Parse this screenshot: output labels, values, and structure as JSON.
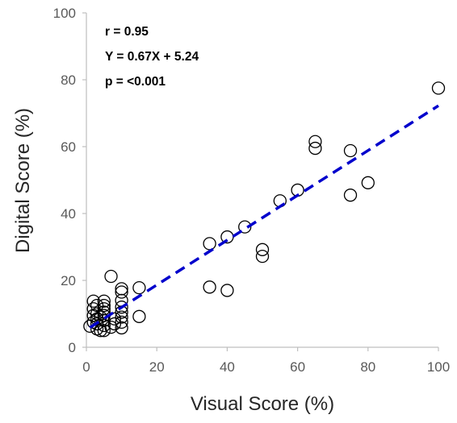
{
  "chart_data": {
    "type": "scatter",
    "title": "",
    "xlabel": "Visual Score (%)",
    "ylabel": "Digital Score (%)",
    "xlim": [
      0,
      100
    ],
    "ylim": [
      0,
      100
    ],
    "x_ticks": [
      "0",
      "20",
      "40",
      "60",
      "80",
      "100"
    ],
    "y_ticks": [
      "0",
      "20",
      "40",
      "60",
      "80",
      "100"
    ],
    "grid": false,
    "legend": "none",
    "annotations": {
      "r": "r = 0.95",
      "equation": "Y = 0.67X + 5.24",
      "p": "p = <0.001"
    },
    "regression": {
      "slope": 0.67,
      "intercept": 5.24,
      "x_range": [
        1,
        100
      ],
      "color": "#0000cc",
      "style": "dashed"
    },
    "point_color": "#000000",
    "points": [
      {
        "x": 1,
        "y": 6.3
      },
      {
        "x": 2,
        "y": 7.5
      },
      {
        "x": 2,
        "y": 9.5
      },
      {
        "x": 2,
        "y": 11.5
      },
      {
        "x": 2,
        "y": 13.8
      },
      {
        "x": 3,
        "y": 5.5
      },
      {
        "x": 3,
        "y": 7.0
      },
      {
        "x": 3,
        "y": 8.5
      },
      {
        "x": 3,
        "y": 12.5
      },
      {
        "x": 3,
        "y": 10.0
      },
      {
        "x": 4,
        "y": 5.0
      },
      {
        "x": 4,
        "y": 9.0
      },
      {
        "x": 5,
        "y": 5.0
      },
      {
        "x": 5,
        "y": 6.5
      },
      {
        "x": 5,
        "y": 8.0
      },
      {
        "x": 5,
        "y": 9.5
      },
      {
        "x": 5,
        "y": 10.5
      },
      {
        "x": 5,
        "y": 11.5
      },
      {
        "x": 5,
        "y": 12.5
      },
      {
        "x": 5,
        "y": 13.8
      },
      {
        "x": 7,
        "y": 21.2
      },
      {
        "x": 7,
        "y": 6.0
      },
      {
        "x": 8,
        "y": 7.0
      },
      {
        "x": 8,
        "y": 8.5
      },
      {
        "x": 10,
        "y": 5.8
      },
      {
        "x": 10,
        "y": 7.5
      },
      {
        "x": 10,
        "y": 9.0
      },
      {
        "x": 10,
        "y": 10.5
      },
      {
        "x": 10,
        "y": 12.0
      },
      {
        "x": 10,
        "y": 14.0
      },
      {
        "x": 10,
        "y": 16.5
      },
      {
        "x": 10,
        "y": 17.5
      },
      {
        "x": 15,
        "y": 17.8
      },
      {
        "x": 15,
        "y": 9.2
      },
      {
        "x": 35,
        "y": 31.0
      },
      {
        "x": 35,
        "y": 18.0
      },
      {
        "x": 40,
        "y": 33.0
      },
      {
        "x": 40,
        "y": 17.0
      },
      {
        "x": 45,
        "y": 36.0
      },
      {
        "x": 50,
        "y": 29.2
      },
      {
        "x": 50,
        "y": 27.2
      },
      {
        "x": 55,
        "y": 43.8
      },
      {
        "x": 60,
        "y": 47.0
      },
      {
        "x": 65,
        "y": 61.5
      },
      {
        "x": 65,
        "y": 59.5
      },
      {
        "x": 75,
        "y": 58.8
      },
      {
        "x": 75,
        "y": 45.5
      },
      {
        "x": 80,
        "y": 49.2
      },
      {
        "x": 100,
        "y": 77.5
      }
    ]
  }
}
